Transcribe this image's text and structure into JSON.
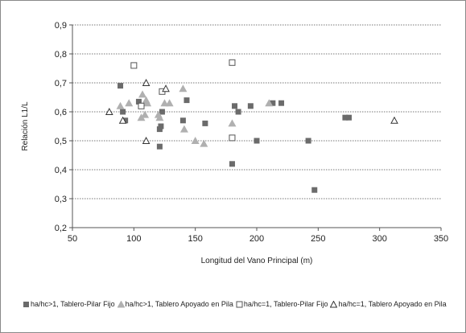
{
  "chart_data": {
    "type": "scatter",
    "xlabel": "Longitud del Vano Principal (m)",
    "ylabel": "Relación L1/L",
    "xlim": [
      50,
      350
    ],
    "ylim": [
      0.2,
      0.9
    ],
    "x_ticks": [
      "50",
      "100",
      "150",
      "200",
      "250",
      "300",
      "350"
    ],
    "y_ticks": [
      "0,2",
      "0,3",
      "0,4",
      "0,5",
      "0,6",
      "0,7",
      "0,8",
      "0,9"
    ],
    "grid": "horizontal dotted",
    "legend_position": "bottom",
    "series": [
      {
        "name": "ha/hc>1, Tablero-Pilar Fijo",
        "marker": "square-filled",
        "color": "#6b6b6b",
        "points": [
          [
            89,
            0.69
          ],
          [
            91,
            0.6
          ],
          [
            93,
            0.57
          ],
          [
            104,
            0.635
          ],
          [
            121,
            0.48
          ],
          [
            121,
            0.54
          ],
          [
            122,
            0.55
          ],
          [
            123,
            0.6
          ],
          [
            140,
            0.57
          ],
          [
            143,
            0.64
          ],
          [
            158,
            0.56
          ],
          [
            180,
            0.42
          ],
          [
            182,
            0.62
          ],
          [
            185,
            0.6
          ],
          [
            195,
            0.62
          ],
          [
            200,
            0.5
          ],
          [
            213,
            0.63
          ],
          [
            220,
            0.63
          ],
          [
            242,
            0.5
          ],
          [
            247,
            0.33
          ],
          [
            272,
            0.58
          ],
          [
            275,
            0.58
          ]
        ]
      },
      {
        "name": "ha/hc>1, Tablero Apoyado en Pila",
        "marker": "triangle-filled",
        "color": "#b0b0b0",
        "points": [
          [
            89,
            0.62
          ],
          [
            96,
            0.63
          ],
          [
            106,
            0.58
          ],
          [
            107,
            0.66
          ],
          [
            109,
            0.59
          ],
          [
            110,
            0.64
          ],
          [
            111,
            0.63
          ],
          [
            120,
            0.59
          ],
          [
            121,
            0.58
          ],
          [
            125,
            0.63
          ],
          [
            129,
            0.63
          ],
          [
            140,
            0.68
          ],
          [
            141,
            0.54
          ],
          [
            150,
            0.5
          ],
          [
            157,
            0.49
          ],
          [
            180,
            0.56
          ],
          [
            210,
            0.63
          ]
        ]
      },
      {
        "name": "ha/hc=1, Tablero-Pilar Fijo",
        "marker": "square-open",
        "color": "#555555",
        "points": [
          [
            100,
            0.76
          ],
          [
            106,
            0.62
          ],
          [
            123,
            0.67
          ],
          [
            180,
            0.77
          ],
          [
            180,
            0.51
          ]
        ]
      },
      {
        "name": "ha/hc=1, Tablero Apoyado en Pila",
        "marker": "triangle-open",
        "color": "#333333",
        "points": [
          [
            80,
            0.6
          ],
          [
            91,
            0.57
          ],
          [
            110,
            0.7
          ],
          [
            110,
            0.5
          ],
          [
            126,
            0.68
          ],
          [
            312,
            0.57
          ]
        ]
      }
    ]
  }
}
